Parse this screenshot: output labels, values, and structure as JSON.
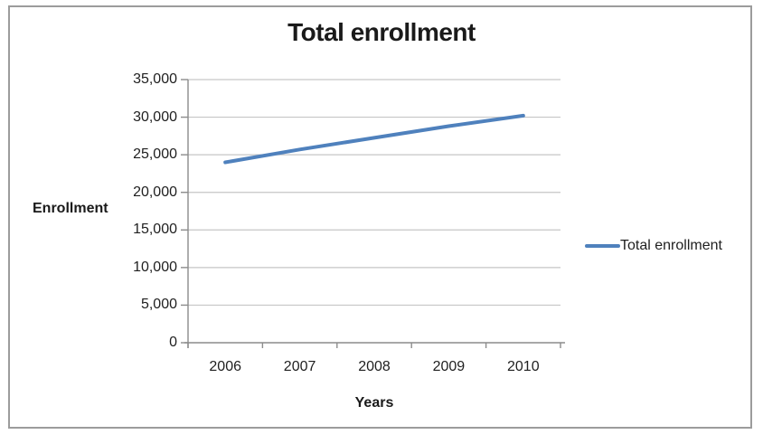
{
  "chart_data": {
    "type": "line",
    "title": "Total enrollment",
    "xlabel": "Years",
    "ylabel": "Enrollment",
    "categories": [
      "2006",
      "2007",
      "2008",
      "2009",
      "2010"
    ],
    "series": [
      {
        "name": "Total enrollment",
        "values": [
          24000,
          25700,
          27250,
          28800,
          30200
        ],
        "color": "#4F81BD"
      }
    ],
    "ylim": [
      0,
      35000
    ],
    "ytick_step": 5000,
    "ytick_labels": [
      "0",
      "5,000",
      "10,000",
      "15,000",
      "20,000",
      "25,000",
      "30,000",
      "35,000"
    ],
    "grid": true,
    "legend_position": "right"
  },
  "colors": {
    "line": "#4F81BD",
    "gridline": "#c6c6c6",
    "axis": "#8c8c8c",
    "border": "#9c9c9c",
    "text": "#1f1f1f"
  }
}
